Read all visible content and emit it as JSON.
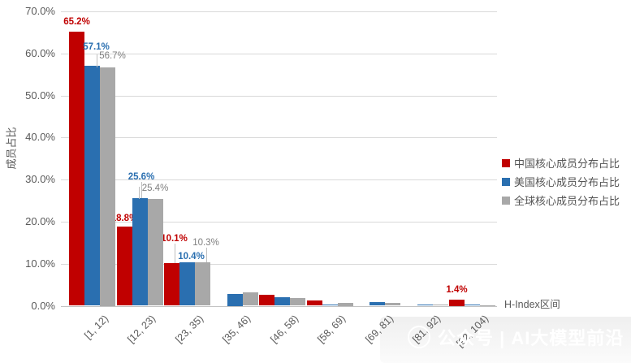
{
  "watermark": {
    "text": "公众号 | AI大模型前沿"
  },
  "chart_data": {
    "type": "bar",
    "title": "",
    "xlabel": "H-Index区间",
    "ylabel": "成员占比",
    "unit": "%",
    "ylim": [
      0,
      70
    ],
    "grid": true,
    "legend_position": "right-middle",
    "y_ticks": [
      "0.0%",
      "10.0%",
      "20.0%",
      "30.0%",
      "40.0%",
      "50.0%",
      "60.0%",
      "70.0%"
    ],
    "categories": [
      "[1, 12)",
      "[12, 23)",
      "[23, 35)",
      "[35, 46)",
      "[46, 58)",
      "[58, 69)",
      "[69, 81)",
      "[81, 92)",
      "[92, 104)"
    ],
    "series": [
      {
        "key": "china",
        "name": "中国核心成员分布占比",
        "color": "#c00000",
        "label_color": "#c00000",
        "values": [
          65.2,
          18.8,
          10.1,
          0,
          2.6,
          1.2,
          0,
          0,
          1.4
        ],
        "data_labels": [
          "65.2%",
          "18.8%",
          "10.1%",
          null,
          null,
          null,
          null,
          null,
          "1.4%"
        ]
      },
      {
        "key": "usa",
        "name": "美国核心成员分布占比",
        "color": "#2a6fb0",
        "label_color": "#2a6fb0",
        "values": [
          57.1,
          25.6,
          10.4,
          2.8,
          2.0,
          0.2,
          0.8,
          0.3,
          0.2
        ],
        "data_labels": [
          "57.1%",
          "25.6%",
          "10.4%",
          null,
          null,
          null,
          null,
          null,
          null
        ]
      },
      {
        "key": "global",
        "name": "全球核心成员分布占比",
        "color": "#a8a8a8",
        "label_color": "#7f7f7f",
        "values": [
          56.7,
          25.4,
          10.3,
          3.2,
          1.9,
          0.7,
          0.6,
          0.2,
          0.15
        ],
        "data_labels": [
          "56.7%",
          "25.4%",
          "10.3%",
          null,
          null,
          null,
          null,
          null,
          null
        ]
      }
    ]
  }
}
